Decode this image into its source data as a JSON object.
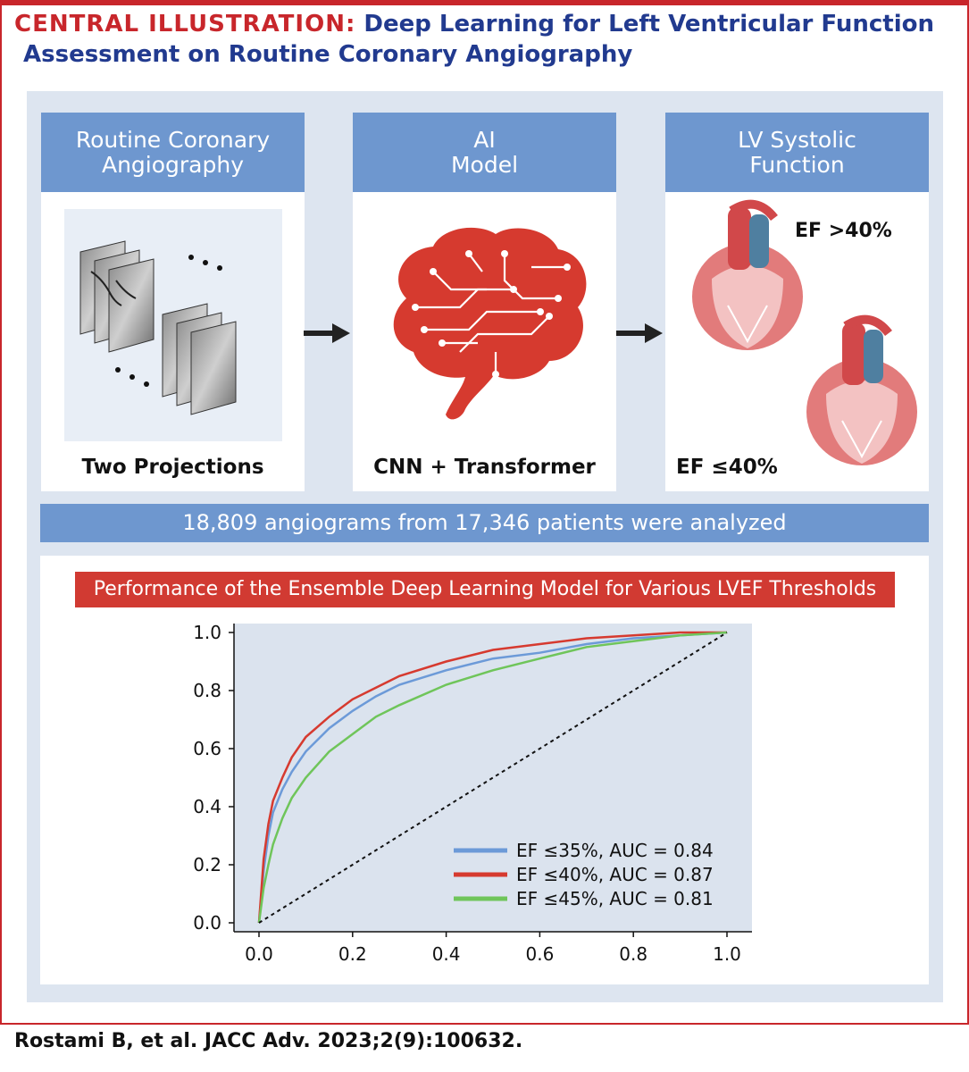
{
  "header": {
    "label": "CENTRAL ILLUSTRATION:",
    "title_line1": "Deep Learning for Left Ventricular Function",
    "title_line2": "Assessment on Routine Coronary Angiography"
  },
  "steps": [
    {
      "line1": "Routine Coronary",
      "line2": "Angiography",
      "footer": "Two Projections"
    },
    {
      "line1": "AI",
      "line2": "Model",
      "footer": "CNN + Transformer"
    },
    {
      "line1": "LV Systolic",
      "line2": "Function",
      "label_top": "EF >40%",
      "footer": "EF ≤40%"
    }
  ],
  "summary": "18,809 angiograms from 17,346 patients were analyzed",
  "performance_title": "Performance of the Ensemble Deep Learning Model for Various LVEF Thresholds",
  "icons": {
    "arrow": "right-arrow-icon",
    "brain": "circuit-brain-icon",
    "heart": "heart-icon",
    "angio": "angiogram-frames-icon"
  },
  "chart_data": {
    "type": "line",
    "title": "",
    "xlabel": "",
    "ylabel": "",
    "xlim": [
      0,
      1
    ],
    "ylim": [
      0,
      1
    ],
    "xticks": [
      "0.0",
      "0.2",
      "0.4",
      "0.6",
      "0.8",
      "1.0"
    ],
    "yticks": [
      "0.0",
      "0.2",
      "0.4",
      "0.6",
      "0.8",
      "1.0"
    ],
    "grid": false,
    "legend": "bottom-right",
    "series": [
      {
        "name": "EF ≤35%, AUC = 0.84",
        "color": "#6c9ad8",
        "x": [
          0,
          0.01,
          0.02,
          0.03,
          0.05,
          0.07,
          0.1,
          0.15,
          0.2,
          0.25,
          0.3,
          0.4,
          0.5,
          0.6,
          0.7,
          0.8,
          0.9,
          1.0
        ],
        "y": [
          0,
          0.18,
          0.3,
          0.38,
          0.46,
          0.52,
          0.59,
          0.67,
          0.73,
          0.78,
          0.82,
          0.87,
          0.91,
          0.93,
          0.96,
          0.98,
          0.99,
          1.0
        ]
      },
      {
        "name": "EF ≤40%, AUC = 0.87",
        "color": "#d63a2f",
        "x": [
          0,
          0.01,
          0.02,
          0.03,
          0.05,
          0.07,
          0.1,
          0.15,
          0.2,
          0.25,
          0.3,
          0.4,
          0.5,
          0.6,
          0.7,
          0.8,
          0.9,
          1.0
        ],
        "y": [
          0,
          0.22,
          0.34,
          0.42,
          0.5,
          0.57,
          0.64,
          0.71,
          0.77,
          0.81,
          0.85,
          0.9,
          0.94,
          0.96,
          0.98,
          0.99,
          1.0,
          1.0
        ]
      },
      {
        "name": "EF ≤45%, AUC = 0.81",
        "color": "#6fc55a",
        "x": [
          0,
          0.01,
          0.02,
          0.03,
          0.05,
          0.07,
          0.1,
          0.15,
          0.2,
          0.25,
          0.3,
          0.4,
          0.5,
          0.6,
          0.7,
          0.8,
          0.9,
          1.0
        ],
        "y": [
          0,
          0.12,
          0.2,
          0.27,
          0.36,
          0.43,
          0.5,
          0.59,
          0.65,
          0.71,
          0.75,
          0.82,
          0.87,
          0.91,
          0.95,
          0.97,
          0.99,
          1.0
        ]
      },
      {
        "name": "",
        "color": "#111111",
        "dashed": true,
        "x": [
          0,
          1
        ],
        "y": [
          0,
          1
        ]
      }
    ]
  },
  "citation": "Rostami B, et al. JACC Adv. 2023;2(9):100632."
}
